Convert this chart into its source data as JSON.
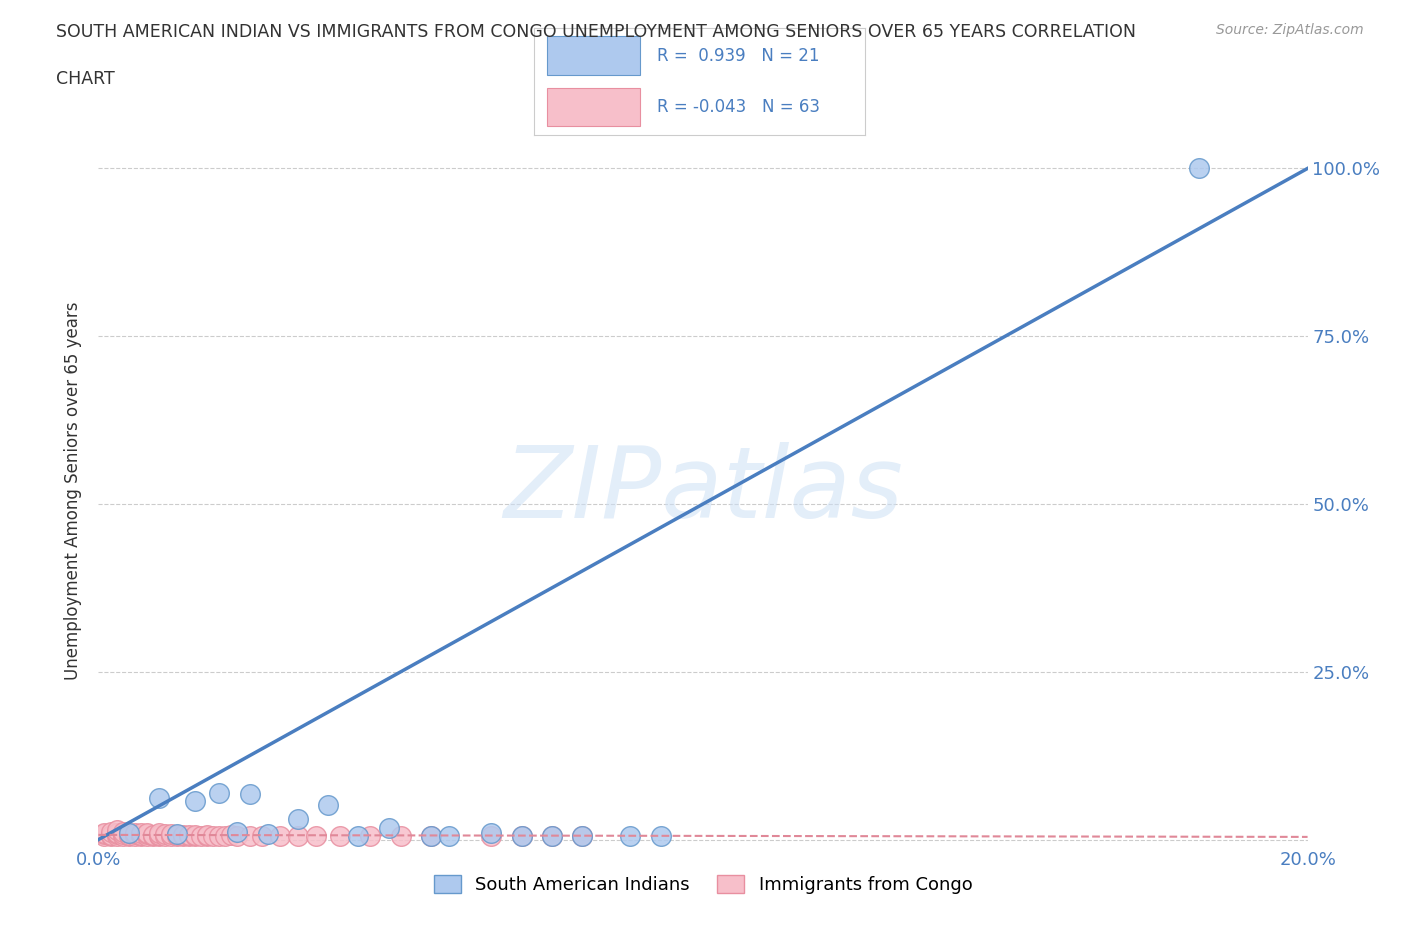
{
  "title_line1": "SOUTH AMERICAN INDIAN VS IMMIGRANTS FROM CONGO UNEMPLOYMENT AMONG SENIORS OVER 65 YEARS CORRELATION",
  "title_line2": "CHART",
  "source": "Source: ZipAtlas.com",
  "ylabel": "Unemployment Among Seniors over 65 years",
  "xlim": [
    0.0,
    0.2
  ],
  "ylim": [
    -0.01,
    1.05
  ],
  "xticks": [
    0.0,
    0.05,
    0.1,
    0.15,
    0.2
  ],
  "xticklabels": [
    "0.0%",
    "",
    "",
    "",
    "20.0%"
  ],
  "yticks": [
    0.0,
    0.25,
    0.5,
    0.75,
    1.0
  ],
  "yticklabels": [
    "",
    "25.0%",
    "50.0%",
    "75.0%",
    "100.0%"
  ],
  "blue_color": "#aec9ee",
  "pink_color": "#f7bfca",
  "blue_edge_color": "#6699cc",
  "pink_edge_color": "#e88fa0",
  "blue_line_color": "#4a7ec0",
  "pink_line_color": "#e08898",
  "watermark": "ZIPatlas",
  "legend_R1": "R =  0.939",
  "legend_N1": "N = 21",
  "legend_R2": "R = -0.043",
  "legend_N2": "N = 63",
  "blue_line_x": [
    0.0,
    0.2
  ],
  "blue_line_y": [
    0.0,
    1.0
  ],
  "pink_line_x": [
    0.0,
    0.2
  ],
  "pink_line_y": [
    0.007,
    0.004
  ],
  "blue_scatter_x": [
    0.005,
    0.01,
    0.013,
    0.016,
    0.02,
    0.023,
    0.025,
    0.028,
    0.033,
    0.038,
    0.043,
    0.048,
    0.055,
    0.058,
    0.065,
    0.07,
    0.075,
    0.08,
    0.088,
    0.093,
    0.182
  ],
  "blue_scatter_y": [
    0.01,
    0.062,
    0.008,
    0.058,
    0.07,
    0.012,
    0.068,
    0.008,
    0.03,
    0.052,
    0.005,
    0.018,
    0.005,
    0.005,
    0.01,
    0.005,
    0.005,
    0.005,
    0.005,
    0.005,
    1.0
  ],
  "pink_scatter_x": [
    0.001,
    0.001,
    0.001,
    0.002,
    0.002,
    0.002,
    0.003,
    0.003,
    0.003,
    0.003,
    0.004,
    0.004,
    0.004,
    0.005,
    0.005,
    0.005,
    0.006,
    0.006,
    0.006,
    0.007,
    0.007,
    0.007,
    0.008,
    0.008,
    0.008,
    0.009,
    0.009,
    0.01,
    0.01,
    0.01,
    0.011,
    0.011,
    0.012,
    0.012,
    0.013,
    0.013,
    0.014,
    0.014,
    0.015,
    0.015,
    0.016,
    0.016,
    0.017,
    0.018,
    0.018,
    0.019,
    0.02,
    0.021,
    0.022,
    0.023,
    0.025,
    0.027,
    0.03,
    0.033,
    0.036,
    0.04,
    0.045,
    0.05,
    0.055,
    0.065,
    0.07,
    0.075,
    0.08
  ],
  "pink_scatter_y": [
    0.005,
    0.008,
    0.01,
    0.005,
    0.007,
    0.012,
    0.005,
    0.008,
    0.01,
    0.015,
    0.005,
    0.008,
    0.012,
    0.005,
    0.007,
    0.01,
    0.005,
    0.008,
    0.01,
    0.005,
    0.007,
    0.01,
    0.005,
    0.008,
    0.01,
    0.005,
    0.007,
    0.005,
    0.007,
    0.01,
    0.005,
    0.008,
    0.005,
    0.008,
    0.005,
    0.007,
    0.005,
    0.007,
    0.005,
    0.007,
    0.005,
    0.007,
    0.005,
    0.005,
    0.007,
    0.005,
    0.005,
    0.005,
    0.007,
    0.005,
    0.005,
    0.005,
    0.005,
    0.005,
    0.005,
    0.005,
    0.005,
    0.005,
    0.005,
    0.005,
    0.005,
    0.005,
    0.005
  ],
  "grid_color": "#cccccc",
  "bg_color": "#ffffff",
  "tick_color": "#4a7ec0",
  "label_color": "#333333"
}
